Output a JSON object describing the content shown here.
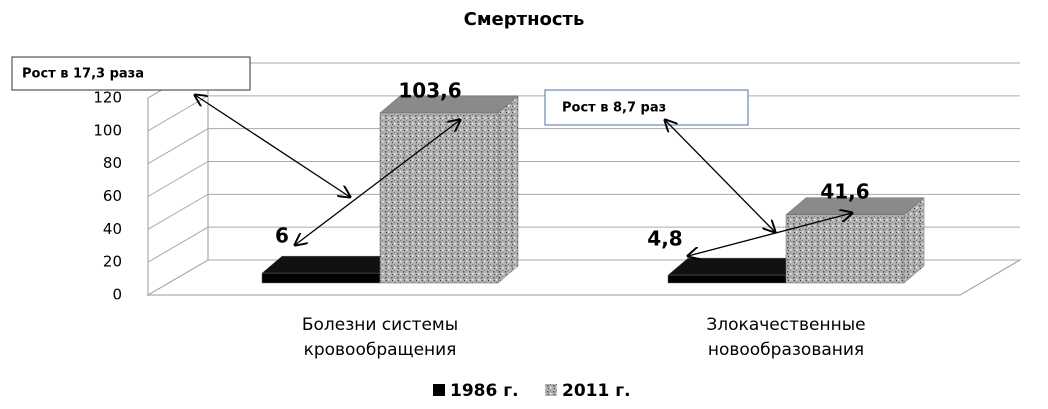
{
  "chart_data": {
    "type": "bar3d",
    "title": "Смертность",
    "categories": [
      "Болезни системы кровообращения",
      "Злокачественные новообразования"
    ],
    "series": [
      {
        "name": "1986 г.",
        "color": "#000000",
        "values": [
          6,
          4.8
        ],
        "value_labels": [
          "6",
          "4,8"
        ]
      },
      {
        "name": "2011 г.",
        "color": "#a6a6a6",
        "values": [
          103.6,
          41.6
        ],
        "value_labels": [
          "103,6",
          "41,6"
        ]
      }
    ],
    "ylim": [
      0,
      120
    ],
    "yticks": [
      0,
      20,
      40,
      60,
      80,
      100,
      120
    ],
    "grid": true,
    "annotations": [
      "Рост в 17,3 раза",
      "Рост в 8,7 раз"
    ]
  }
}
